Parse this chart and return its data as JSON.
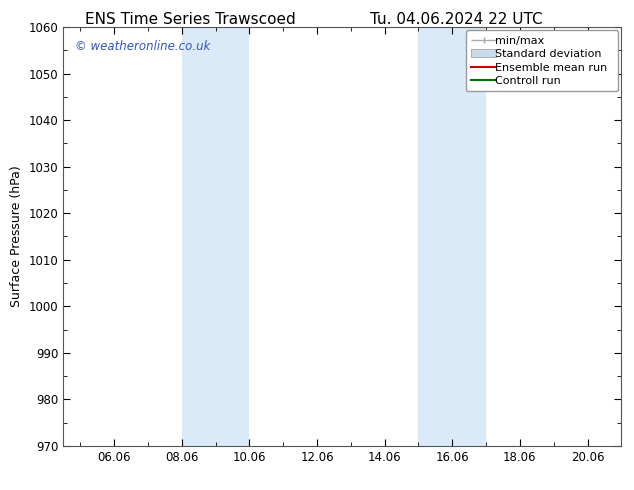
{
  "title_left": "ENS Time Series Trawscoed",
  "title_right": "Tu. 04.06.2024 22 UTC",
  "ylabel": "Surface Pressure (hPa)",
  "ylim": [
    970,
    1060
  ],
  "yticks": [
    970,
    980,
    990,
    1000,
    1010,
    1020,
    1030,
    1040,
    1050,
    1060
  ],
  "xlim_start": 4.5,
  "xlim_end": 21.0,
  "xtick_positions": [
    6.0,
    8.0,
    10.0,
    12.0,
    14.0,
    16.0,
    18.0,
    20.0
  ],
  "xtick_labels": [
    "06.06",
    "08.06",
    "10.06",
    "12.06",
    "14.06",
    "16.06",
    "18.06",
    "20.06"
  ],
  "shaded_bands": [
    {
      "x_start": 8.0,
      "x_end": 10.0
    },
    {
      "x_start": 15.0,
      "x_end": 17.0
    }
  ],
  "shaded_color": "#daeaf8",
  "watermark_text": "© weatheronline.co.uk",
  "watermark_color": "#3355bb",
  "legend_entries": [
    {
      "label": "min/max",
      "color": "#aaaaaa",
      "type": "minmax"
    },
    {
      "label": "Standard deviation",
      "color": "#c8dced",
      "type": "stddev"
    },
    {
      "label": "Ensemble mean run",
      "color": "#cc0000",
      "type": "line"
    },
    {
      "label": "Controll run",
      "color": "#007700",
      "type": "line"
    }
  ],
  "bg_color": "#ffffff",
  "spine_color": "#555555",
  "title_fontsize": 11,
  "axis_fontsize": 9,
  "tick_fontsize": 8.5,
  "legend_fontsize": 8
}
